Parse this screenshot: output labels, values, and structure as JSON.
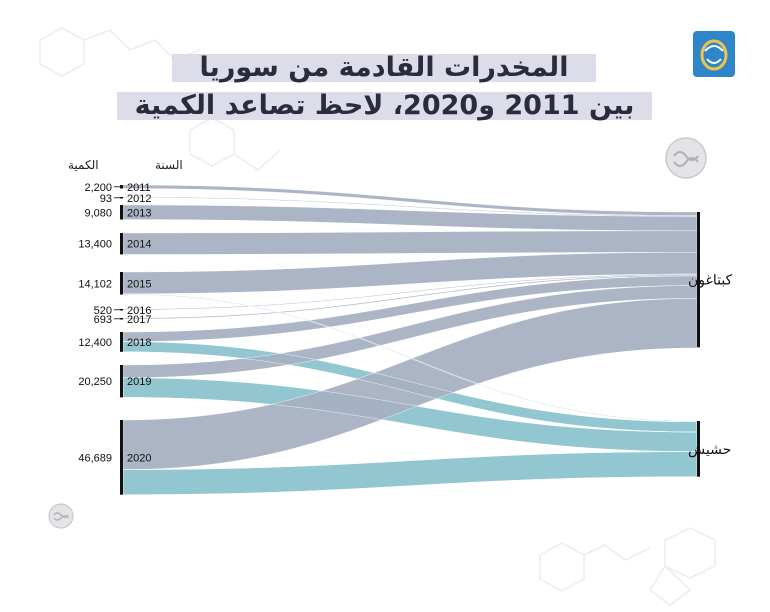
{
  "title_line1": "المخدرات القادمة من سوريا",
  "title_line2": "بين 2011 و2020، لاحظ تصاعد الكمية",
  "header_quantity": "الكمية",
  "header_year": "السنة",
  "colors": {
    "captagon": "#a7b1c2",
    "hashish": "#8cc4cf",
    "cross": "#7b68b0",
    "node": "#111111",
    "title_bg": "#dcdde8",
    "logo": "#2e86c9"
  },
  "chart_data": {
    "type": "sankey",
    "title": "المخدرات القادمة من سوريا",
    "subtitle": "بين 2011 و2020، لاحظ تصاعد الكمية",
    "source_header": "السنة",
    "value_header": "الكمية",
    "sources": [
      {
        "year": "2011",
        "quantity": 2200,
        "label": "2,200"
      },
      {
        "year": "2012",
        "quantity": 93,
        "label": "93"
      },
      {
        "year": "2013",
        "quantity": 9080,
        "label": "9,080"
      },
      {
        "year": "2014",
        "quantity": 13400,
        "label": "13,400"
      },
      {
        "year": "2015",
        "quantity": 14102,
        "label": "14,102"
      },
      {
        "year": "2016",
        "quantity": 520,
        "label": "520"
      },
      {
        "year": "2017",
        "quantity": 693,
        "label": "693"
      },
      {
        "year": "2018",
        "quantity": 12400,
        "label": "12,400"
      },
      {
        "year": "2019",
        "quantity": 20250,
        "label": "20,250"
      },
      {
        "year": "2020",
        "quantity": 46689,
        "label": "46,689"
      }
    ],
    "targets": [
      "كبتاغون",
      "حشيش"
    ],
    "flows": [
      {
        "year": "2011",
        "target": "كبتاغون",
        "value": 2200
      },
      {
        "year": "2012",
        "target": "كبتاغون",
        "value": 93
      },
      {
        "year": "2013",
        "target": "كبتاغون",
        "value": 9080
      },
      {
        "year": "2014",
        "target": "كبتاغون",
        "value": 13400
      },
      {
        "year": "2015",
        "target": "كبتاغون",
        "value": 13600
      },
      {
        "year": "2015",
        "target": "حشيش",
        "value": 502
      },
      {
        "year": "2016",
        "target": "كبتاغون",
        "value": 520
      },
      {
        "year": "2017",
        "target": "كبتاغون",
        "value": 693
      },
      {
        "year": "2018",
        "target": "كبتاغون",
        "value": 6000
      },
      {
        "year": "2018",
        "target": "حشيش",
        "value": 6400
      },
      {
        "year": "2019",
        "target": "كبتاغون",
        "value": 8000
      },
      {
        "year": "2019",
        "target": "حشيش",
        "value": 12250
      },
      {
        "year": "2020",
        "target": "كبتاغون",
        "value": 31000
      },
      {
        "year": "2020",
        "target": "حشيش",
        "value": 15689
      }
    ]
  }
}
